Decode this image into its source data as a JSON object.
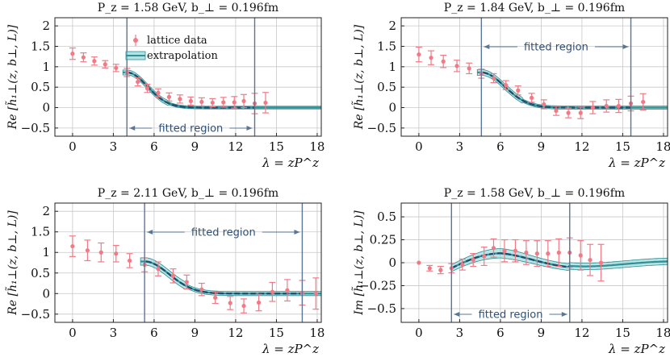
{
  "colors": {
    "data": "#f07a86",
    "band_fill": "#7fd0d2",
    "band_edge": "#2a8c92",
    "center": "#2f8f94",
    "fit_line": "#5b7597",
    "grid": "#c8c8c8"
  },
  "legend": {
    "data_label": "lattice data",
    "band_label": "extrapolation"
  },
  "chart_data": [
    {
      "type": "scatter",
      "title": "P_z = 1.58 GeV, b_⊥ = 0.196fm",
      "ylabel": "Re [h̃₁⊥(z, b⊥, L)]",
      "xlabel": "λ = zP^z",
      "xlim": [
        -1.3,
        18.3
      ],
      "ylim": [
        -0.7,
        2.2
      ],
      "xticks": [
        0,
        3,
        6,
        9,
        12,
        15,
        18
      ],
      "xtick_labels": [
        "0",
        "3",
        "6",
        "9",
        "12",
        "15",
        "18"
      ],
      "yticks": [
        -0.5,
        0,
        0.5,
        1,
        1.5,
        2
      ],
      "ytick_labels": [
        "−0.5",
        "0",
        "0.5",
        "1",
        "1.5",
        "2"
      ],
      "has_legend": true,
      "fit_region": [
        4.0,
        13.4
      ],
      "fit_label": "fitted region",
      "fit_label_pos": "bottom",
      "points": [
        {
          "x": 0,
          "y": 1.32,
          "err": 0.14
        },
        {
          "x": 0.8,
          "y": 1.23,
          "err": 0.11
        },
        {
          "x": 1.6,
          "y": 1.14,
          "err": 0.1
        },
        {
          "x": 2.4,
          "y": 1.06,
          "err": 0.09
        },
        {
          "x": 3.2,
          "y": 0.97,
          "err": 0.09
        },
        {
          "x": 4.0,
          "y": 0.86,
          "err": 0.1
        },
        {
          "x": 4.8,
          "y": 0.63,
          "err": 0.1
        },
        {
          "x": 5.5,
          "y": 0.47,
          "err": 0.1
        },
        {
          "x": 6.3,
          "y": 0.36,
          "err": 0.1
        },
        {
          "x": 7.1,
          "y": 0.26,
          "err": 0.1
        },
        {
          "x": 7.9,
          "y": 0.21,
          "err": 0.1
        },
        {
          "x": 8.7,
          "y": 0.16,
          "err": 0.1
        },
        {
          "x": 9.5,
          "y": 0.14,
          "err": 0.1
        },
        {
          "x": 10.3,
          "y": 0.12,
          "err": 0.1
        },
        {
          "x": 11.1,
          "y": 0.13,
          "err": 0.12
        },
        {
          "x": 11.9,
          "y": 0.13,
          "err": 0.14
        },
        {
          "x": 12.6,
          "y": 0.16,
          "err": 0.16
        },
        {
          "x": 13.4,
          "y": 0.1,
          "err": 0.25
        },
        {
          "x": 14.2,
          "y": 0.12,
          "err": 0.25
        }
      ],
      "band": {
        "amp": 0.86,
        "x0": 4.0,
        "mu": 6.0,
        "sigma": 1.5,
        "width": 0.06
      },
      "center_curve": {
        "x0": 4.0,
        "x1": 13.4
      }
    },
    {
      "type": "scatter",
      "title": "P_z = 1.84 GeV, b_⊥ = 0.196fm",
      "ylabel": "Re [h̃₁⊥(z, b⊥, L)]",
      "xlabel": "λ = zP^z",
      "xlim": [
        -1.3,
        18.3
      ],
      "ylim": [
        -0.7,
        2.2
      ],
      "xticks": [
        0,
        3,
        6,
        9,
        12,
        15,
        18
      ],
      "xtick_labels": [
        "0",
        "3",
        "6",
        "9",
        "12",
        "15",
        "18"
      ],
      "yticks": [
        -0.5,
        0,
        0.5,
        1,
        1.5,
        2
      ],
      "ytick_labels": [
        "−0.5",
        "0",
        "0.5",
        "1",
        "1.5",
        "2"
      ],
      "has_legend": false,
      "fit_region": [
        4.6,
        15.6
      ],
      "fit_label": "fitted region",
      "fit_label_pos": "top",
      "points": [
        {
          "x": 0,
          "y": 1.3,
          "err": 0.18
        },
        {
          "x": 0.9,
          "y": 1.22,
          "err": 0.17
        },
        {
          "x": 1.8,
          "y": 1.13,
          "err": 0.15
        },
        {
          "x": 2.8,
          "y": 1.02,
          "err": 0.14
        },
        {
          "x": 3.7,
          "y": 0.96,
          "err": 0.13
        },
        {
          "x": 4.6,
          "y": 0.83,
          "err": 0.11
        },
        {
          "x": 5.5,
          "y": 0.72,
          "err": 0.11
        },
        {
          "x": 6.4,
          "y": 0.55,
          "err": 0.11
        },
        {
          "x": 7.3,
          "y": 0.42,
          "err": 0.11
        },
        {
          "x": 8.3,
          "y": 0.24,
          "err": 0.11
        },
        {
          "x": 9.2,
          "y": 0.08,
          "err": 0.11
        },
        {
          "x": 10.1,
          "y": -0.08,
          "err": 0.11
        },
        {
          "x": 11.0,
          "y": -0.13,
          "err": 0.12
        },
        {
          "x": 11.9,
          "y": -0.13,
          "err": 0.14
        },
        {
          "x": 12.8,
          "y": 0.0,
          "err": 0.15
        },
        {
          "x": 13.8,
          "y": 0.04,
          "err": 0.15
        },
        {
          "x": 14.7,
          "y": 0.04,
          "err": 0.16
        },
        {
          "x": 15.6,
          "y": 0.1,
          "err": 0.18
        },
        {
          "x": 16.5,
          "y": 0.14,
          "err": 0.2
        }
      ],
      "band": {
        "amp": 0.86,
        "x0": 4.6,
        "mu": 7.0,
        "sigma": 1.7,
        "width": 0.07
      },
      "center_curve": {
        "x0": 4.6,
        "x1": 15.6
      }
    },
    {
      "type": "scatter",
      "title": "P_z = 2.11 GeV, b_⊥ = 0.196fm",
      "ylabel": "Re [h̃₁⊥(z, b⊥, L)]",
      "xlabel": "λ = zP^z",
      "xlim": [
        -1.3,
        18.3
      ],
      "ylim": [
        -0.7,
        2.2
      ],
      "xticks": [
        0,
        3,
        6,
        9,
        12,
        15,
        18
      ],
      "xtick_labels": [
        "0",
        "3",
        "6",
        "9",
        "12",
        "15",
        "18"
      ],
      "yticks": [
        -0.5,
        0,
        0.5,
        1,
        1.5,
        2
      ],
      "ytick_labels": [
        "−0.5",
        "0",
        "0.5",
        "1",
        "1.5",
        "2"
      ],
      "has_legend": false,
      "fit_region": [
        5.3,
        16.9
      ],
      "fit_label": "fitted region",
      "fit_label_pos": "top",
      "points": [
        {
          "x": 0,
          "y": 1.15,
          "err": 0.25
        },
        {
          "x": 1.1,
          "y": 1.05,
          "err": 0.25
        },
        {
          "x": 2.1,
          "y": 1.0,
          "err": 0.23
        },
        {
          "x": 3.2,
          "y": 0.97,
          "err": 0.2
        },
        {
          "x": 4.2,
          "y": 0.8,
          "err": 0.17
        },
        {
          "x": 5.3,
          "y": 0.7,
          "err": 0.17
        },
        {
          "x": 6.3,
          "y": 0.6,
          "err": 0.17
        },
        {
          "x": 7.4,
          "y": 0.43,
          "err": 0.17
        },
        {
          "x": 8.4,
          "y": 0.28,
          "err": 0.17
        },
        {
          "x": 9.5,
          "y": 0.1,
          "err": 0.15
        },
        {
          "x": 10.5,
          "y": -0.1,
          "err": 0.14
        },
        {
          "x": 11.6,
          "y": -0.23,
          "err": 0.16
        },
        {
          "x": 12.6,
          "y": -0.3,
          "err": 0.17
        },
        {
          "x": 13.7,
          "y": -0.22,
          "err": 0.2
        },
        {
          "x": 14.7,
          "y": 0.04,
          "err": 0.23
        },
        {
          "x": 15.8,
          "y": 0.08,
          "err": 0.26
        },
        {
          "x": 16.9,
          "y": 0.02,
          "err": 0.3
        },
        {
          "x": 17.9,
          "y": 0.0,
          "err": 0.38
        }
      ],
      "band": {
        "amp": 0.78,
        "x0": 5.3,
        "mu": 7.6,
        "sigma": 1.8,
        "width": 0.09
      },
      "center_curve": {
        "x0": 5.3,
        "x1": 16.9
      }
    },
    {
      "type": "scatter",
      "title": "P_z = 1.58 GeV, b_⊥ = 0.196fm",
      "ylabel": "Im [h̃₁⊥(z, b⊥, L)]",
      "xlabel": "λ = zP^z",
      "xlim": [
        -1.3,
        18.3
      ],
      "ylim": [
        -0.65,
        0.65
      ],
      "xticks": [
        0,
        3,
        6,
        9,
        12,
        15,
        18
      ],
      "xtick_labels": [
        "0",
        "3",
        "6",
        "9",
        "12",
        "15",
        "18"
      ],
      "yticks": [
        -0.5,
        -0.25,
        0,
        0.25,
        0.5
      ],
      "ytick_labels": [
        "−0.5",
        "−0.25",
        "0",
        "0.25",
        "0.5"
      ],
      "has_legend": false,
      "fit_region": [
        2.4,
        11.1
      ],
      "fit_label": "fitted region",
      "fit_label_pos": "bottom",
      "points": [
        {
          "x": 0,
          "y": 0.0,
          "err": 0.0
        },
        {
          "x": 0.8,
          "y": -0.06,
          "err": 0.03
        },
        {
          "x": 1.6,
          "y": -0.08,
          "err": 0.04
        },
        {
          "x": 2.4,
          "y": -0.06,
          "err": 0.05
        },
        {
          "x": 3.2,
          "y": -0.02,
          "err": 0.06
        },
        {
          "x": 4.0,
          "y": 0.03,
          "err": 0.07
        },
        {
          "x": 4.8,
          "y": 0.07,
          "err": 0.1
        },
        {
          "x": 5.5,
          "y": 0.16,
          "err": 0.1
        },
        {
          "x": 6.3,
          "y": 0.13,
          "err": 0.12
        },
        {
          "x": 7.1,
          "y": 0.13,
          "err": 0.12
        },
        {
          "x": 7.9,
          "y": 0.11,
          "err": 0.13
        },
        {
          "x": 8.7,
          "y": 0.1,
          "err": 0.14
        },
        {
          "x": 9.5,
          "y": 0.1,
          "err": 0.14
        },
        {
          "x": 10.3,
          "y": 0.11,
          "err": 0.15
        },
        {
          "x": 11.1,
          "y": 0.11,
          "err": 0.16
        },
        {
          "x": 11.9,
          "y": 0.08,
          "err": 0.16
        },
        {
          "x": 12.6,
          "y": 0.03,
          "err": 0.17
        },
        {
          "x": 13.4,
          "y": 0.0,
          "err": 0.2
        }
      ],
      "band": {
        "amp": 0.0,
        "x0": 2.4,
        "mu": 0,
        "sigma": 1,
        "width": 0.06,
        "im": true
      },
      "center_curve": {
        "x0": 2.4,
        "x1": 11.1
      }
    }
  ]
}
